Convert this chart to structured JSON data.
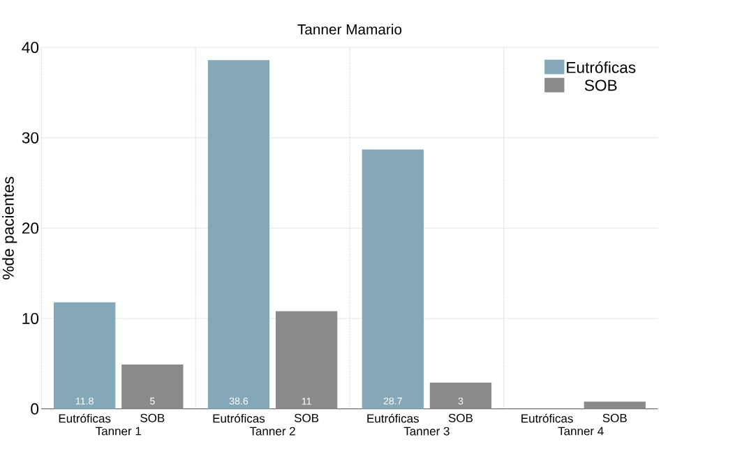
{
  "chart_data": {
    "type": "bar",
    "title": "Tanner Mamario",
    "ylabel": "%de pacientes",
    "categories": [
      "Tanner 1",
      "Tanner 2",
      "Tanner 3",
      "Tanner 4"
    ],
    "series": [
      {
        "name": "Eutróficas",
        "color": "#84a8b7",
        "values": [
          11.8,
          38.6,
          28.7,
          0
        ],
        "value_labels": [
          "11.8",
          "38.6",
          "28.7",
          null
        ]
      },
      {
        "name": "SOB",
        "color": "#8a8a8a",
        "values": [
          4.9,
          10.8,
          2.9,
          0.8
        ],
        "value_labels": [
          "5",
          "11",
          "3",
          null
        ]
      }
    ],
    "ylim": [
      0,
      40
    ],
    "yticks": [
      0,
      10,
      20,
      30,
      40
    ],
    "grid": "y",
    "legend": "top right"
  }
}
